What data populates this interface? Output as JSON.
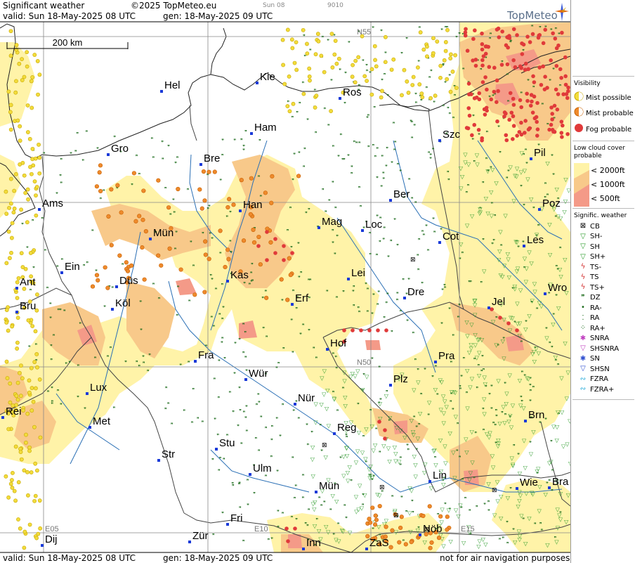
{
  "header": {
    "product": "Significant weather",
    "copyright": "©2025 TopMeteo.eu",
    "small_label_1": "Sun 08",
    "small_label_2": "9010",
    "valid": "valid:  Sun  18-May-2025  08 UTC",
    "generated": "gen: 18-May-2025  09 UTC",
    "brand": "TopMeteo"
  },
  "footer": {
    "valid": "valid:  Sun  18-May-2025  08 UTC",
    "generated": "gen: 18-May-2025  09 UTC",
    "disclaimer": "not for air navigation purposes"
  },
  "scale": {
    "label": "200 km"
  },
  "grid_labels": {
    "n55": "N55",
    "n50": "N50",
    "e05": "E05",
    "e10": "E10",
    "e15": "E15"
  },
  "cities": [
    {
      "name": "Kie"
    },
    {
      "name": "Hel"
    },
    {
      "name": "Ros"
    },
    {
      "name": "Ham"
    },
    {
      "name": "Gro"
    },
    {
      "name": "Bre"
    },
    {
      "name": "Szc"
    },
    {
      "name": "Pil"
    },
    {
      "name": "Ams"
    },
    {
      "name": "Han"
    },
    {
      "name": "Ber"
    },
    {
      "name": "Poz"
    },
    {
      "name": "Mün"
    },
    {
      "name": "Mag"
    },
    {
      "name": "Loc"
    },
    {
      "name": "Cot"
    },
    {
      "name": "Les"
    },
    {
      "name": "Ein"
    },
    {
      "name": "Kas"
    },
    {
      "name": "Lei"
    },
    {
      "name": "Ant"
    },
    {
      "name": "Düs"
    },
    {
      "name": "Wro"
    },
    {
      "name": "Bru"
    },
    {
      "name": "Köl"
    },
    {
      "name": "Erf"
    },
    {
      "name": "Dre"
    },
    {
      "name": "Jel"
    },
    {
      "name": "Hof"
    },
    {
      "name": "Fra"
    },
    {
      "name": "Pra"
    },
    {
      "name": "Wür"
    },
    {
      "name": "Lux"
    },
    {
      "name": "Plz"
    },
    {
      "name": "Nür"
    },
    {
      "name": "Rei"
    },
    {
      "name": "Met"
    },
    {
      "name": "Reg"
    },
    {
      "name": "Brn"
    },
    {
      "name": "Stu"
    },
    {
      "name": "Str"
    },
    {
      "name": "Ulm"
    },
    {
      "name": "Lin"
    },
    {
      "name": "Mün"
    },
    {
      "name": "Wie"
    },
    {
      "name": "Bra"
    },
    {
      "name": "Fri"
    },
    {
      "name": "Nöb"
    },
    {
      "name": "Dij"
    },
    {
      "name": "Zür"
    },
    {
      "name": "Inn"
    },
    {
      "name": "ZaS"
    }
  ],
  "legend": {
    "visibility_title": "Visibility",
    "visibility": [
      {
        "label": "Mist possible",
        "icon": "mist-possible-icon",
        "color": "#f2dc3c"
      },
      {
        "label": "Mist probable",
        "icon": "mist-probable-icon",
        "color": "#ee8a2c"
      },
      {
        "label": "Fog probable",
        "icon": "fog-probable-icon",
        "color": "#e03a3a"
      }
    ],
    "low_cloud_title_1": "Low cloud cover",
    "low_cloud_title_2": "probable",
    "low_cloud": [
      {
        "label": "< 2000ft",
        "color": "#fff3a8"
      },
      {
        "label": "< 1000ft",
        "color": "#f8c98a"
      },
      {
        "label": "<   500ft",
        "color": "#f49a88"
      }
    ],
    "sigwx_title": "Signific. weather",
    "sigwx": [
      {
        "label": "CB",
        "icon": "cb-icon",
        "glyph": "⊠",
        "color": "#000000"
      },
      {
        "label": "SH-",
        "icon": "shower-light-icon",
        "glyph": "▽",
        "color": "#2a9a2a"
      },
      {
        "label": "SH",
        "icon": "shower-icon",
        "glyph": "▽",
        "color": "#2a9a2a"
      },
      {
        "label": "SH+",
        "icon": "shower-heavy-icon",
        "glyph": "▽",
        "color": "#2a9a2a"
      },
      {
        "label": "TS-",
        "icon": "thunderstorm-light-icon",
        "glyph": "ϟ",
        "color": "#d02a2a"
      },
      {
        "label": "TS",
        "icon": "thunderstorm-icon",
        "glyph": "ϟ",
        "color": "#d02a2a"
      },
      {
        "label": "TS+",
        "icon": "thunderstorm-heavy-icon",
        "glyph": "ϟ",
        "color": "#d02a2a"
      },
      {
        "label": "DZ",
        "icon": "drizzle-icon",
        "glyph": "❞",
        "color": "#1a6a1a"
      },
      {
        "label": "RA-",
        "icon": "rain-light-icon",
        "glyph": "•",
        "color": "#1a6a1a"
      },
      {
        "label": "RA",
        "icon": "rain-icon",
        "glyph": "⁚",
        "color": "#1a6a1a"
      },
      {
        "label": "RA+",
        "icon": "rain-heavy-icon",
        "glyph": "⁘",
        "color": "#1a6a1a"
      },
      {
        "label": "SNRA",
        "icon": "snow-rain-icon",
        "glyph": "✱",
        "color": "#c040c0"
      },
      {
        "label": "SHSNRA",
        "icon": "snow-rain-shower-icon",
        "glyph": "▽",
        "color": "#c040c0"
      },
      {
        "label": "SN",
        "icon": "snow-icon",
        "glyph": "✱",
        "color": "#3050d0"
      },
      {
        "label": "SHSN",
        "icon": "snow-shower-icon",
        "glyph": "▽",
        "color": "#3050d0"
      },
      {
        "label": "FZRA",
        "icon": "freezing-rain-icon",
        "glyph": "∾",
        "color": "#20a8d8"
      },
      {
        "label": "FZRA+",
        "icon": "freezing-rain-heavy-icon",
        "glyph": "∾",
        "color": "#20a8d8"
      }
    ]
  }
}
